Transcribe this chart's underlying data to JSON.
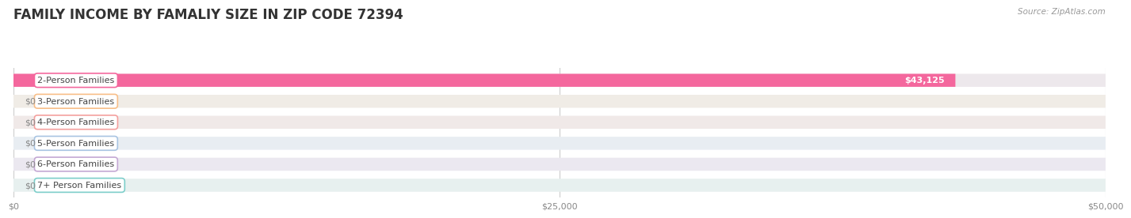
{
  "title": "FAMILY INCOME BY FAMALIY SIZE IN ZIP CODE 72394",
  "source": "Source: ZipAtlas.com",
  "categories": [
    "2-Person Families",
    "3-Person Families",
    "4-Person Families",
    "5-Person Families",
    "6-Person Families",
    "7+ Person Families"
  ],
  "values": [
    43125,
    0,
    0,
    0,
    0,
    0
  ],
  "bar_colors": [
    "#f4679d",
    "#f8bf89",
    "#f4a09e",
    "#a8c4e2",
    "#c4a8d4",
    "#7dceca"
  ],
  "bg_colors": [
    "#ede8ec",
    "#f0ece6",
    "#f0e9e8",
    "#e8edf2",
    "#ebe8f0",
    "#e7f0ef"
  ],
  "xlim": [
    0,
    50000
  ],
  "xticks": [
    0,
    25000,
    50000
  ],
  "xtick_labels": [
    "$0",
    "$25,000",
    "$50,000"
  ],
  "value_labels": [
    "$43,125",
    "$0",
    "$0",
    "$0",
    "$0",
    "$0"
  ],
  "title_fontsize": 12,
  "label_fontsize": 8,
  "tick_fontsize": 8,
  "source_fontsize": 7.5,
  "background_color": "#ffffff",
  "grid_color": "#cccccc",
  "bar_height": 0.62
}
